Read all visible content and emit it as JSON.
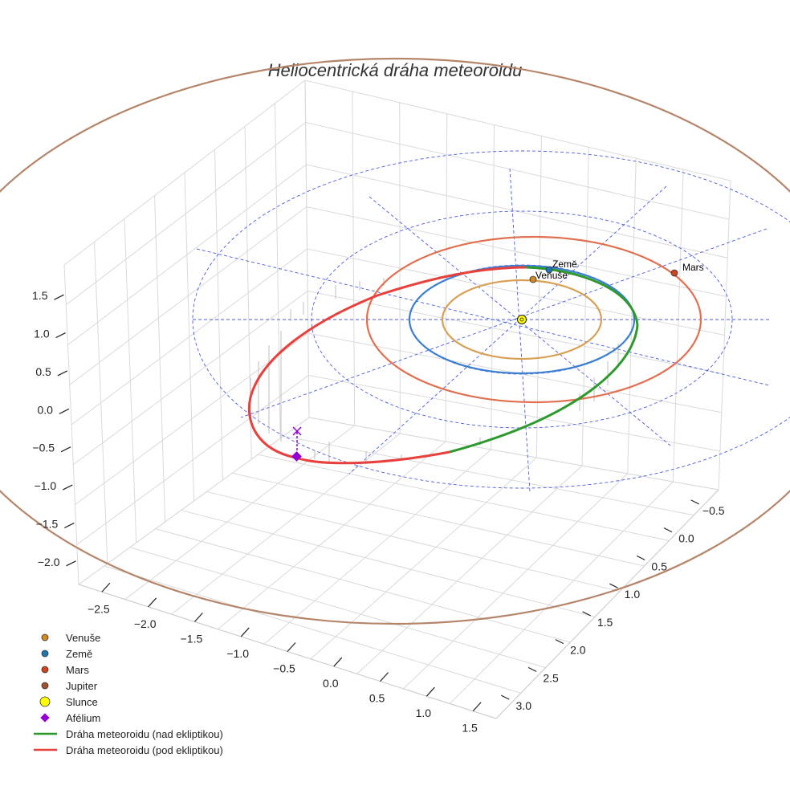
{
  "chart_data": {
    "type": "3d-orbit-plot",
    "title": "Heliocentrická dráha meteoroidu",
    "axes": {
      "x_ticks": [
        -2.5,
        -2.0,
        -1.5,
        -1.0,
        -0.5,
        0.0,
        0.5,
        1.0,
        1.5
      ],
      "x_tick_labels": [
        "−2.5",
        "−2.0",
        "−1.5",
        "−1.0",
        "−0.5",
        "0.0",
        "0.5",
        "1.0",
        "1.5"
      ],
      "y_ticks": [
        -0.5,
        0.0,
        0.5,
        1.0,
        1.5,
        2.0,
        2.5,
        3.0
      ],
      "y_tick_labels": [
        "−0.5",
        "0.0",
        "0.5",
        "1.0",
        "1.5",
        "2.0",
        "2.5",
        "3.0"
      ],
      "z_ticks": [
        1.5,
        1.0,
        0.5,
        0.0,
        -0.5,
        -1.0,
        -1.5,
        -2.0
      ],
      "z_tick_labels": [
        "1.5",
        "1.0",
        "0.5",
        "0.0",
        "−0.5",
        "−1.0",
        "−1.5",
        "−2.0"
      ],
      "grid": true
    },
    "planets": [
      {
        "name": "Venuše",
        "label": "Venuše",
        "orbit_radius_au": 0.72,
        "color": "#d08a20",
        "orbit_color": "#d7a055"
      },
      {
        "name": "Země",
        "label": "Země",
        "orbit_radius_au": 1.0,
        "color": "#1f77b4",
        "orbit_color": "#3a7fd0"
      },
      {
        "name": "Mars",
        "label": "Mars",
        "orbit_radius_au": 1.52,
        "color": "#d2421c",
        "orbit_color": "#e07050"
      },
      {
        "name": "Jupiter",
        "label": "",
        "orbit_radius_au": 5.2,
        "color": "#a0522d",
        "orbit_color": "#b5856a"
      }
    ],
    "sun": {
      "name": "Slunce",
      "color": "#ffff00"
    },
    "aphelion": {
      "name": "Afélium",
      "color": "#9400d3"
    },
    "meteoroid_orbit": [
      {
        "name": "Dráha meteoroidu (nad ekliptikou)",
        "color": "#2e9a2e"
      },
      {
        "name": "Dráha meteoroidu (pod ekliptikou)",
        "color": "#e8403c"
      }
    ],
    "ecliptic_grid": {
      "ring_radii_au": [
        1,
        2,
        3
      ],
      "color": "#4a5ae0",
      "style": "dashed"
    },
    "legend": {
      "position": "bottom-left",
      "entries": [
        {
          "label": "Venuše",
          "marker": "circle",
          "color": "#d08a20"
        },
        {
          "label": "Země",
          "marker": "circle",
          "color": "#1f77b4"
        },
        {
          "label": "Mars",
          "marker": "circle",
          "color": "#d2421c"
        },
        {
          "label": "Jupiter",
          "marker": "circle",
          "color": "#a0522d"
        },
        {
          "label": "Slunce",
          "marker": "big-circle",
          "color": "#ffff00"
        },
        {
          "label": "Afélium",
          "marker": "diamond",
          "color": "#9400d3"
        },
        {
          "label": "Dráha meteoroidu (nad ekliptikou)",
          "marker": "line",
          "color": "#2e9a2e"
        },
        {
          "label": "Dráha meteoroidu (pod ekliptikou)",
          "marker": "line",
          "color": "#e8403c"
        }
      ]
    }
  }
}
